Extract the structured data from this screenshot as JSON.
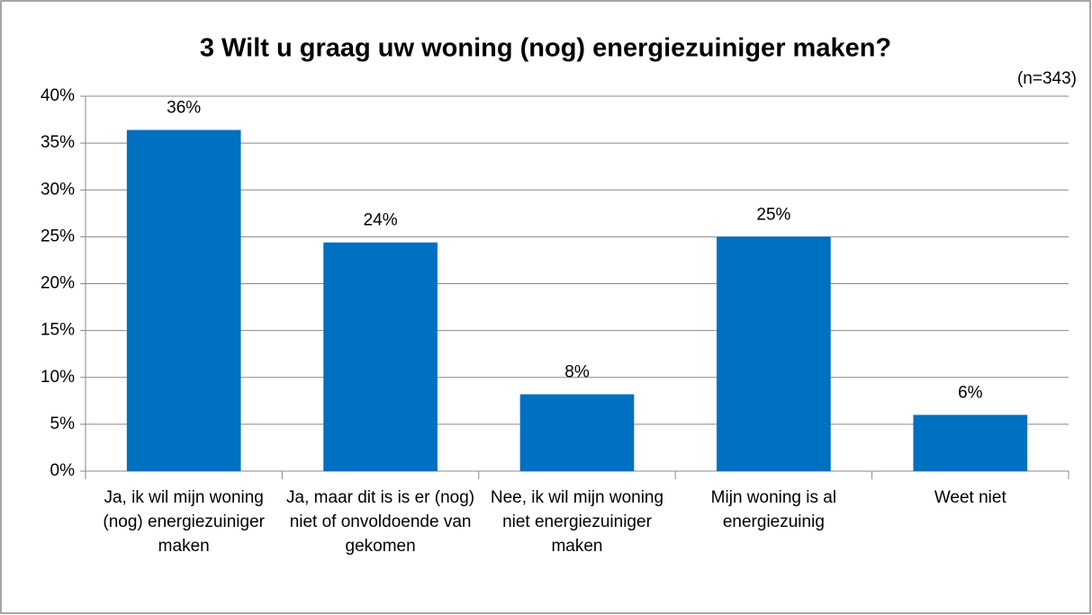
{
  "chart_data": {
    "type": "bar",
    "title": "3 Wilt u graag uw woning (nog) energiezuiniger maken?",
    "subtitle": "(n=343)",
    "categories": [
      "Ja, ik wil mijn woning (nog) energiezuiniger maken",
      "Ja, maar dit is is er (nog) niet of onvoldoende van gekomen",
      "Nee, ik wil mijn woning niet energiezuiniger maken",
      "Mijn woning is al energiezuinig",
      "Weet niet"
    ],
    "values": [
      36.4,
      24.4,
      8.2,
      25.0,
      6.0
    ],
    "value_labels": [
      "36%",
      "24%",
      "8%",
      "25%",
      "6%"
    ],
    "color": "#0070c0",
    "ylim": [
      0,
      40
    ],
    "yticks": [
      {
        "value": 0,
        "label": "0%"
      },
      {
        "value": 5,
        "label": "5%"
      },
      {
        "value": 10,
        "label": "10%"
      },
      {
        "value": 15,
        "label": "15%"
      },
      {
        "value": 20,
        "label": "20%"
      },
      {
        "value": 25,
        "label": "25%"
      },
      {
        "value": 30,
        "label": "30%"
      },
      {
        "value": 35,
        "label": "35%"
      },
      {
        "value": 40,
        "label": "40%"
      }
    ],
    "grid": true
  }
}
